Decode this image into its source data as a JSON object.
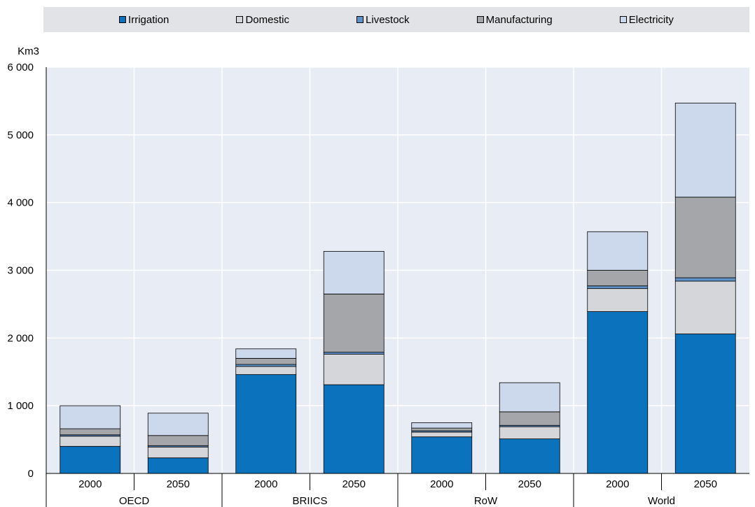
{
  "chart_data": {
    "type": "bar",
    "stacked": true,
    "ylabel": "Km3",
    "ylim": [
      0,
      6000
    ],
    "yticks": [
      0,
      1000,
      2000,
      3000,
      4000,
      5000,
      6000
    ],
    "ytick_labels": [
      "0",
      "1 000",
      "2 000",
      "3 000",
      "4 000",
      "5 000",
      "6 000"
    ],
    "grid": true,
    "legend_position": "top",
    "groups": [
      "OECD",
      "BRIICS",
      "RoW",
      "World"
    ],
    "categories": [
      "2000",
      "2050",
      "2000",
      "2050",
      "2000",
      "2050",
      "2000",
      "2050"
    ],
    "series": [
      {
        "name": "Irrigation",
        "color": "#0b72bd",
        "values": [
          400,
          230,
          1460,
          1310,
          540,
          510,
          2390,
          2060
        ]
      },
      {
        "name": "Domestic",
        "color": "#d5d6d9",
        "values": [
          150,
          160,
          120,
          450,
          70,
          180,
          340,
          780
        ]
      },
      {
        "name": "Livestock",
        "color": "#5f92c9",
        "values": [
          20,
          20,
          30,
          30,
          20,
          20,
          40,
          50
        ]
      },
      {
        "name": "Manufacturing",
        "color": "#a5a6aa",
        "values": [
          90,
          150,
          90,
          860,
          40,
          200,
          230,
          1190
        ]
      },
      {
        "name": "Electricity",
        "color": "#ccd8ec",
        "values": [
          340,
          330,
          140,
          630,
          80,
          430,
          570,
          1390
        ]
      }
    ]
  }
}
